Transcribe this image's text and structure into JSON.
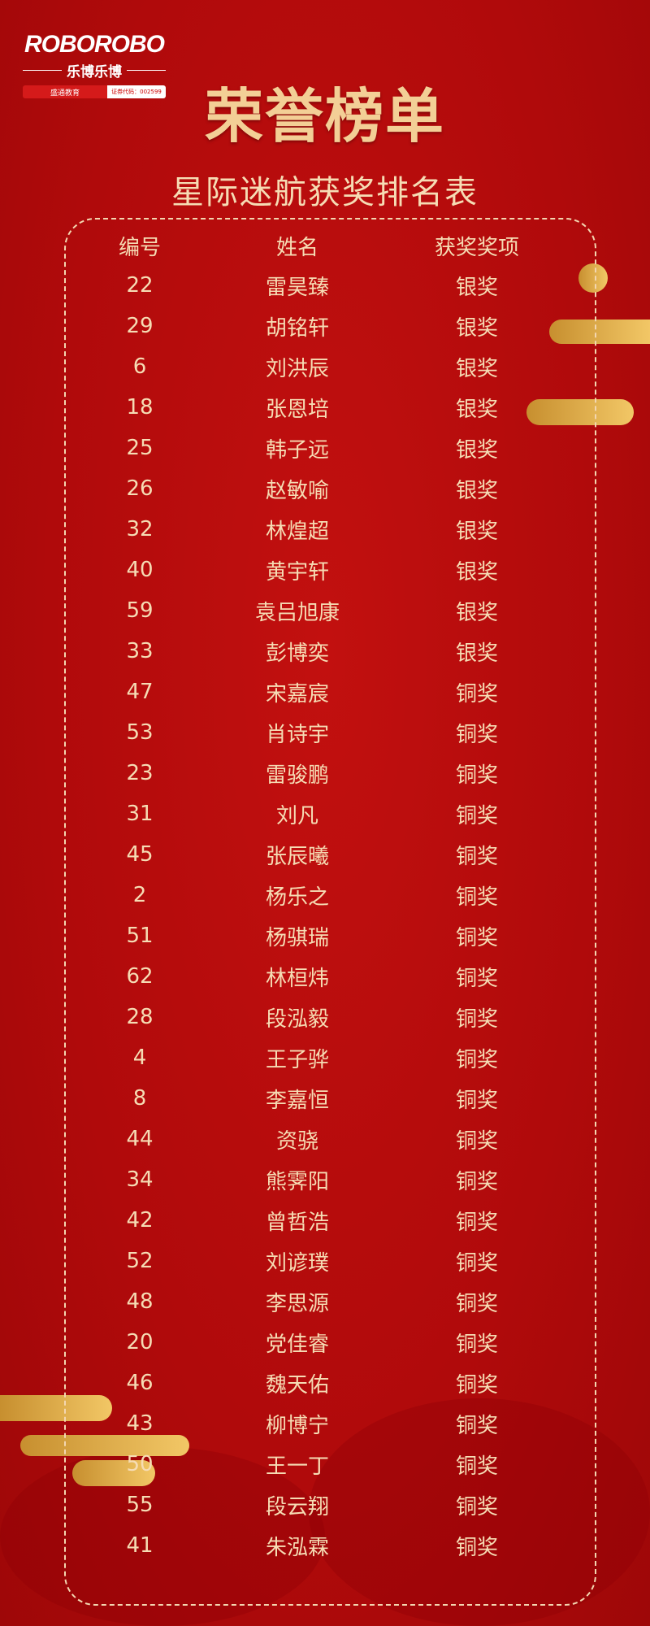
{
  "logo": {
    "brand": "ROBOROBO",
    "cn_name": "乐博乐博",
    "parent": "盛通教育",
    "stock_code": "证券代码：002599"
  },
  "title": "荣誉榜单",
  "subtitle": "星际迷航获奖排名表",
  "table": {
    "headers": [
      "编号",
      "姓名",
      "获奖奖项"
    ],
    "rows": [
      [
        "22",
        "雷昊臻",
        "银奖"
      ],
      [
        "29",
        "胡铭轩",
        "银奖"
      ],
      [
        "6",
        "刘洪辰",
        "银奖"
      ],
      [
        "18",
        "张恩培",
        "银奖"
      ],
      [
        "25",
        "韩子远",
        "银奖"
      ],
      [
        "26",
        "赵敏喻",
        "银奖"
      ],
      [
        "32",
        "林煌超",
        "银奖"
      ],
      [
        "40",
        "黄宇轩",
        "银奖"
      ],
      [
        "59",
        "袁吕旭康",
        "银奖"
      ],
      [
        "33",
        "彭博奕",
        "银奖"
      ],
      [
        "47",
        "宋嘉宸",
        "铜奖"
      ],
      [
        "53",
        "肖诗宇",
        "铜奖"
      ],
      [
        "23",
        "雷骏鹏",
        "铜奖"
      ],
      [
        "31",
        "刘凡",
        "铜奖"
      ],
      [
        "45",
        "张辰曦",
        "铜奖"
      ],
      [
        "2",
        "杨乐之",
        "铜奖"
      ],
      [
        "51",
        "杨骐瑞",
        "铜奖"
      ],
      [
        "62",
        "林桓炜",
        "铜奖"
      ],
      [
        "28",
        "段泓毅",
        "铜奖"
      ],
      [
        "4",
        "王子骅",
        "铜奖"
      ],
      [
        "8",
        "李嘉恒",
        "铜奖"
      ],
      [
        "44",
        "资骁",
        "铜奖"
      ],
      [
        "34",
        "熊霁阳",
        "铜奖"
      ],
      [
        "42",
        "曾哲浩",
        "铜奖"
      ],
      [
        "52",
        "刘谚璞",
        "铜奖"
      ],
      [
        "48",
        "李思源",
        "铜奖"
      ],
      [
        "20",
        "党佳睿",
        "铜奖"
      ],
      [
        "46",
        "魏天佑",
        "铜奖"
      ],
      [
        "43",
        "柳博宁",
        "铜奖"
      ],
      [
        "50",
        "王一丁",
        "铜奖"
      ],
      [
        "55",
        "段云翔",
        "铜奖"
      ],
      [
        "41",
        "朱泓霖",
        "铜奖"
      ]
    ]
  },
  "colors": {
    "background": "#b00a0b",
    "text": "#f6dcb4",
    "gold": "#e8b855"
  }
}
